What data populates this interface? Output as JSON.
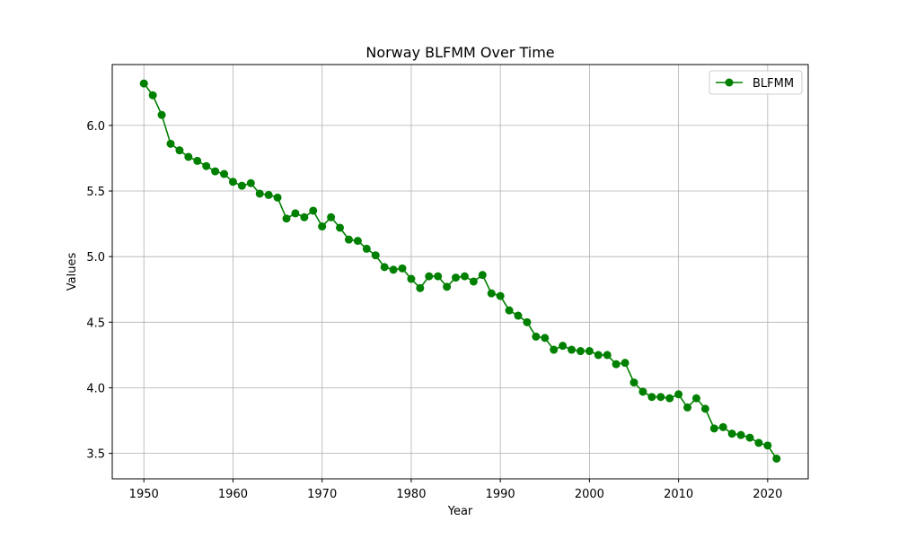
{
  "chart_data": {
    "type": "line",
    "title": "Norway BLFMM Over Time",
    "xlabel": "Year",
    "ylabel": "Values",
    "xlim": [
      1946.45,
      2024.55
    ],
    "ylim": [
      3.306,
      6.464
    ],
    "xticks": [
      1950,
      1960,
      1970,
      1980,
      1990,
      2000,
      2010,
      2020
    ],
    "yticks": [
      3.5,
      4.0,
      4.5,
      5.0,
      5.5,
      6.0
    ],
    "ytick_labels": [
      "3.5",
      "4.0",
      "4.5",
      "5.0",
      "5.5",
      "6.0"
    ],
    "grid": true,
    "legend_position": "top-right",
    "series": [
      {
        "name": "BLFMM",
        "color": "#008000",
        "marker": "circle",
        "x": [
          1950,
          1951,
          1952,
          1953,
          1954,
          1955,
          1956,
          1957,
          1958,
          1959,
          1960,
          1961,
          1962,
          1963,
          1964,
          1965,
          1966,
          1967,
          1968,
          1969,
          1970,
          1971,
          1972,
          1973,
          1974,
          1975,
          1976,
          1977,
          1978,
          1979,
          1980,
          1981,
          1982,
          1983,
          1984,
          1985,
          1986,
          1987,
          1988,
          1989,
          1990,
          1991,
          1992,
          1993,
          1994,
          1995,
          1996,
          1997,
          1998,
          1999,
          2000,
          2001,
          2002,
          2003,
          2004,
          2005,
          2006,
          2007,
          2008,
          2009,
          2010,
          2011,
          2012,
          2013,
          2014,
          2015,
          2016,
          2017,
          2018,
          2019,
          2020,
          2021
        ],
        "y": [
          6.32,
          6.23,
          6.08,
          5.86,
          5.81,
          5.76,
          5.73,
          5.69,
          5.65,
          5.63,
          5.57,
          5.54,
          5.56,
          5.48,
          5.47,
          5.45,
          5.29,
          5.33,
          5.3,
          5.35,
          5.23,
          5.3,
          5.22,
          5.13,
          5.12,
          5.06,
          5.01,
          4.92,
          4.9,
          4.91,
          4.83,
          4.76,
          4.85,
          4.85,
          4.77,
          4.84,
          4.85,
          4.81,
          4.86,
          4.72,
          4.7,
          4.59,
          4.55,
          4.5,
          4.39,
          4.38,
          4.29,
          4.32,
          4.29,
          4.28,
          4.28,
          4.25,
          4.25,
          4.18,
          4.19,
          4.04,
          3.97,
          3.93,
          3.93,
          3.92,
          3.95,
          3.85,
          3.92,
          3.84,
          3.69,
          3.7,
          3.65,
          3.64,
          3.62,
          3.58,
          3.56,
          3.46
        ]
      }
    ]
  }
}
